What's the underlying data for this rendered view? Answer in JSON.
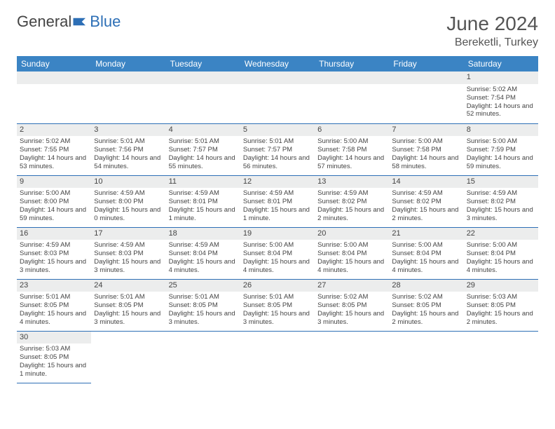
{
  "brand": {
    "part1": "General",
    "part2": "Blue",
    "flag_color": "#2d6fb6"
  },
  "title": "June 2024",
  "location": "Bereketli, Turkey",
  "colors": {
    "header_bg": "#3b84c4",
    "header_text": "#ffffff",
    "daynum_bg": "#eceded",
    "border": "#2d6fb6",
    "text": "#444444",
    "background": "#ffffff"
  },
  "days_of_week": [
    "Sunday",
    "Monday",
    "Tuesday",
    "Wednesday",
    "Thursday",
    "Friday",
    "Saturday"
  ],
  "weeks": [
    [
      null,
      null,
      null,
      null,
      null,
      null,
      {
        "n": "1",
        "sr": "Sunrise: 5:02 AM",
        "ss": "Sunset: 7:54 PM",
        "dl": "Daylight: 14 hours and 52 minutes."
      }
    ],
    [
      {
        "n": "2",
        "sr": "Sunrise: 5:02 AM",
        "ss": "Sunset: 7:55 PM",
        "dl": "Daylight: 14 hours and 53 minutes."
      },
      {
        "n": "3",
        "sr": "Sunrise: 5:01 AM",
        "ss": "Sunset: 7:56 PM",
        "dl": "Daylight: 14 hours and 54 minutes."
      },
      {
        "n": "4",
        "sr": "Sunrise: 5:01 AM",
        "ss": "Sunset: 7:57 PM",
        "dl": "Daylight: 14 hours and 55 minutes."
      },
      {
        "n": "5",
        "sr": "Sunrise: 5:01 AM",
        "ss": "Sunset: 7:57 PM",
        "dl": "Daylight: 14 hours and 56 minutes."
      },
      {
        "n": "6",
        "sr": "Sunrise: 5:00 AM",
        "ss": "Sunset: 7:58 PM",
        "dl": "Daylight: 14 hours and 57 minutes."
      },
      {
        "n": "7",
        "sr": "Sunrise: 5:00 AM",
        "ss": "Sunset: 7:58 PM",
        "dl": "Daylight: 14 hours and 58 minutes."
      },
      {
        "n": "8",
        "sr": "Sunrise: 5:00 AM",
        "ss": "Sunset: 7:59 PM",
        "dl": "Daylight: 14 hours and 59 minutes."
      }
    ],
    [
      {
        "n": "9",
        "sr": "Sunrise: 5:00 AM",
        "ss": "Sunset: 8:00 PM",
        "dl": "Daylight: 14 hours and 59 minutes."
      },
      {
        "n": "10",
        "sr": "Sunrise: 4:59 AM",
        "ss": "Sunset: 8:00 PM",
        "dl": "Daylight: 15 hours and 0 minutes."
      },
      {
        "n": "11",
        "sr": "Sunrise: 4:59 AM",
        "ss": "Sunset: 8:01 PM",
        "dl": "Daylight: 15 hours and 1 minute."
      },
      {
        "n": "12",
        "sr": "Sunrise: 4:59 AM",
        "ss": "Sunset: 8:01 PM",
        "dl": "Daylight: 15 hours and 1 minute."
      },
      {
        "n": "13",
        "sr": "Sunrise: 4:59 AM",
        "ss": "Sunset: 8:02 PM",
        "dl": "Daylight: 15 hours and 2 minutes."
      },
      {
        "n": "14",
        "sr": "Sunrise: 4:59 AM",
        "ss": "Sunset: 8:02 PM",
        "dl": "Daylight: 15 hours and 2 minutes."
      },
      {
        "n": "15",
        "sr": "Sunrise: 4:59 AM",
        "ss": "Sunset: 8:02 PM",
        "dl": "Daylight: 15 hours and 3 minutes."
      }
    ],
    [
      {
        "n": "16",
        "sr": "Sunrise: 4:59 AM",
        "ss": "Sunset: 8:03 PM",
        "dl": "Daylight: 15 hours and 3 minutes."
      },
      {
        "n": "17",
        "sr": "Sunrise: 4:59 AM",
        "ss": "Sunset: 8:03 PM",
        "dl": "Daylight: 15 hours and 3 minutes."
      },
      {
        "n": "18",
        "sr": "Sunrise: 4:59 AM",
        "ss": "Sunset: 8:04 PM",
        "dl": "Daylight: 15 hours and 4 minutes."
      },
      {
        "n": "19",
        "sr": "Sunrise: 5:00 AM",
        "ss": "Sunset: 8:04 PM",
        "dl": "Daylight: 15 hours and 4 minutes."
      },
      {
        "n": "20",
        "sr": "Sunrise: 5:00 AM",
        "ss": "Sunset: 8:04 PM",
        "dl": "Daylight: 15 hours and 4 minutes."
      },
      {
        "n": "21",
        "sr": "Sunrise: 5:00 AM",
        "ss": "Sunset: 8:04 PM",
        "dl": "Daylight: 15 hours and 4 minutes."
      },
      {
        "n": "22",
        "sr": "Sunrise: 5:00 AM",
        "ss": "Sunset: 8:04 PM",
        "dl": "Daylight: 15 hours and 4 minutes."
      }
    ],
    [
      {
        "n": "23",
        "sr": "Sunrise: 5:01 AM",
        "ss": "Sunset: 8:05 PM",
        "dl": "Daylight: 15 hours and 4 minutes."
      },
      {
        "n": "24",
        "sr": "Sunrise: 5:01 AM",
        "ss": "Sunset: 8:05 PM",
        "dl": "Daylight: 15 hours and 3 minutes."
      },
      {
        "n": "25",
        "sr": "Sunrise: 5:01 AM",
        "ss": "Sunset: 8:05 PM",
        "dl": "Daylight: 15 hours and 3 minutes."
      },
      {
        "n": "26",
        "sr": "Sunrise: 5:01 AM",
        "ss": "Sunset: 8:05 PM",
        "dl": "Daylight: 15 hours and 3 minutes."
      },
      {
        "n": "27",
        "sr": "Sunrise: 5:02 AM",
        "ss": "Sunset: 8:05 PM",
        "dl": "Daylight: 15 hours and 3 minutes."
      },
      {
        "n": "28",
        "sr": "Sunrise: 5:02 AM",
        "ss": "Sunset: 8:05 PM",
        "dl": "Daylight: 15 hours and 2 minutes."
      },
      {
        "n": "29",
        "sr": "Sunrise: 5:03 AM",
        "ss": "Sunset: 8:05 PM",
        "dl": "Daylight: 15 hours and 2 minutes."
      }
    ],
    [
      {
        "n": "30",
        "sr": "Sunrise: 5:03 AM",
        "ss": "Sunset: 8:05 PM",
        "dl": "Daylight: 15 hours and 1 minute."
      },
      null,
      null,
      null,
      null,
      null,
      null
    ]
  ]
}
